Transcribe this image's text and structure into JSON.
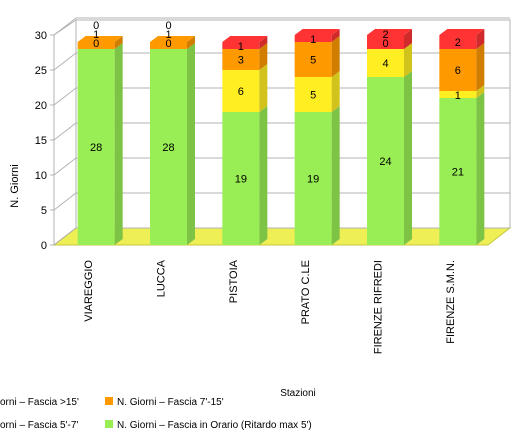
{
  "chart_data": {
    "type": "bar",
    "stacked": true,
    "three_d": true,
    "categories": [
      "VIAREGGIO",
      "LUCCA",
      "PISTOIA",
      "PRATO C.LE",
      "FIRENZE RIFREDI",
      "FIRENZE S.M.N."
    ],
    "series": [
      {
        "name": "N. Giorni – Fascia in Orario (Ritardo max 5')",
        "color": "#99ee55",
        "values": [
          28,
          28,
          19,
          19,
          24,
          21
        ]
      },
      {
        "name": "N. Giorni – Fascia 5'-7'",
        "color": "#ffee22",
        "values": [
          0,
          0,
          6,
          5,
          4,
          1
        ]
      },
      {
        "name": "N. Giorni – Fascia 7'-15'",
        "color": "#ff9900",
        "values": [
          1,
          1,
          3,
          5,
          0,
          6
        ]
      },
      {
        "name": "N. Giorni – Fascia >15'",
        "color": "#ff3333",
        "values": [
          0,
          0,
          1,
          1,
          2,
          2
        ]
      }
    ],
    "xlabel": "Stazioni",
    "ylabel": "N. Giorni",
    "ylim": [
      0,
      30
    ],
    "yticks": [
      0,
      5,
      10,
      15,
      20,
      25,
      30
    ],
    "grid": true,
    "legend": [
      {
        "text": "orni – Fascia >15'",
        "color": "#ff3333"
      },
      {
        "text": "N. Giorni – Fascia 7'-15'",
        "color": "#ff9900"
      },
      {
        "text": "orni – Fascia 5'-7'",
        "color": "#ffee22"
      },
      {
        "text": "N. Giorni – Fascia in Orario (Ritardo max 5')",
        "color": "#99ee55"
      }
    ],
    "legend_position": "bottom"
  }
}
